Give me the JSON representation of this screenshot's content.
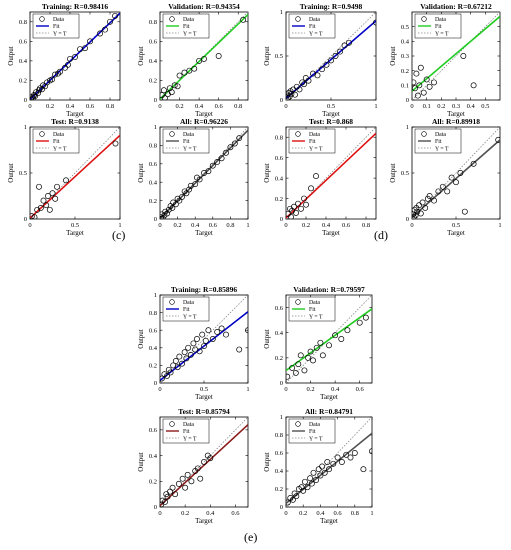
{
  "labels": {
    "c": "(c)",
    "d": "(d)",
    "e": "(e)"
  },
  "legend_text": {
    "data": "Data",
    "fit": "Fit",
    "yt": "Y = T"
  },
  "axis_text": {
    "x": "Target",
    "y": "Output"
  },
  "colors": {
    "training": "#0000c8",
    "validation": "#22cc22",
    "test": "#dd1111",
    "all": "#505050",
    "marker": "#000000",
    "diag": "#888888",
    "test_e": "#8b1a1a"
  },
  "chart_data": [
    {
      "type": "scatter",
      "id": "c-train",
      "title": "Training: R=0.98416",
      "xlabel": "Target",
      "ylabel": "Output",
      "xlim": [
        0,
        0.9
      ],
      "ylim": [
        0,
        0.9
      ],
      "xticks": [
        0,
        0.2,
        0.4,
        0.6,
        0.8
      ],
      "yticks": [
        0,
        0.2,
        0.4,
        0.6,
        0.8
      ],
      "series": [
        {
          "name": "Data",
          "x": [
            0.01,
            0.02,
            0.03,
            0.04,
            0.05,
            0.06,
            0.08,
            0.09,
            0.1,
            0.12,
            0.13,
            0.15,
            0.17,
            0.2,
            0.22,
            0.25,
            0.28,
            0.3,
            0.35,
            0.38,
            0.4,
            0.45,
            0.5,
            0.55,
            0.6,
            0.7,
            0.75,
            0.8,
            0.85
          ],
          "y": [
            0.0,
            0.03,
            0.02,
            0.05,
            0.04,
            0.08,
            0.07,
            0.1,
            0.12,
            0.11,
            0.15,
            0.14,
            0.18,
            0.2,
            0.21,
            0.26,
            0.27,
            0.29,
            0.33,
            0.36,
            0.42,
            0.44,
            0.52,
            0.53,
            0.6,
            0.68,
            0.72,
            0.8,
            0.86
          ]
        }
      ],
      "fit": [
        0.005,
        0.98
      ]
    },
    {
      "type": "scatter",
      "id": "c-val",
      "title": "Validation: R=0.94354",
      "xlabel": "Target",
      "ylabel": "Output",
      "xlim": [
        0,
        0.9
      ],
      "ylim": [
        0,
        0.9
      ],
      "xticks": [
        0,
        0.2,
        0.4,
        0.6,
        0.8
      ],
      "yticks": [
        0,
        0.2,
        0.4,
        0.6,
        0.8
      ],
      "series": [
        {
          "name": "Data",
          "x": [
            0.02,
            0.04,
            0.05,
            0.08,
            0.1,
            0.12,
            0.15,
            0.18,
            0.2,
            0.25,
            0.3,
            0.35,
            0.4,
            0.45,
            0.6,
            0.85
          ],
          "y": [
            0.05,
            0.1,
            0.02,
            0.06,
            0.12,
            0.08,
            0.15,
            0.14,
            0.25,
            0.28,
            0.3,
            0.32,
            0.4,
            0.42,
            0.45,
            0.82
          ]
        }
      ],
      "fit": [
        0.01,
        0.96
      ]
    },
    {
      "type": "scatter",
      "id": "c-test",
      "title": "Test: R=0.9138",
      "xlabel": "Target",
      "ylabel": "Output",
      "xlim": [
        0,
        1
      ],
      "ylim": [
        0,
        1
      ],
      "xticks": [
        0,
        0.5,
        1
      ],
      "yticks": [
        0,
        0.5,
        1
      ],
      "series": [
        {
          "name": "Data",
          "x": [
            0.02,
            0.05,
            0.08,
            0.1,
            0.12,
            0.15,
            0.18,
            0.2,
            0.22,
            0.25,
            0.28,
            0.3,
            0.4,
            0.95
          ],
          "y": [
            0.03,
            0.02,
            0.1,
            0.35,
            0.12,
            0.2,
            0.15,
            0.25,
            0.1,
            0.28,
            0.22,
            0.35,
            0.42,
            0.82
          ]
        }
      ],
      "fit": [
        0.01,
        0.9
      ]
    },
    {
      "type": "scatter",
      "id": "c-all",
      "title": "All: R=0.96226",
      "xlabel": "Target",
      "ylabel": "Output",
      "xlim": [
        0,
        1
      ],
      "ylim": [
        0,
        1
      ],
      "xticks": [
        0,
        0.2,
        0.4,
        0.6,
        0.8,
        1
      ],
      "yticks": [
        0,
        0.2,
        0.4,
        0.6,
        0.8,
        1
      ],
      "series": [
        {
          "name": "Data",
          "x": [
            0.01,
            0.02,
            0.03,
            0.05,
            0.06,
            0.08,
            0.1,
            0.12,
            0.14,
            0.15,
            0.18,
            0.2,
            0.22,
            0.25,
            0.28,
            0.3,
            0.33,
            0.35,
            0.4,
            0.42,
            0.45,
            0.5,
            0.55,
            0.6,
            0.65,
            0.7,
            0.75,
            0.8,
            0.85,
            0.9
          ],
          "y": [
            0.02,
            0.05,
            0.01,
            0.04,
            0.08,
            0.06,
            0.1,
            0.14,
            0.12,
            0.18,
            0.16,
            0.22,
            0.2,
            0.24,
            0.3,
            0.28,
            0.32,
            0.36,
            0.38,
            0.45,
            0.43,
            0.5,
            0.52,
            0.58,
            0.62,
            0.66,
            0.72,
            0.78,
            0.82,
            0.88
          ]
        }
      ],
      "fit": [
        0.005,
        0.96
      ]
    },
    {
      "type": "scatter",
      "id": "d-train",
      "title": "Training: R=0.9498",
      "xlabel": "Target",
      "ylabel": "Output",
      "xlim": [
        0,
        1
      ],
      "ylim": [
        0,
        1
      ],
      "xticks": [
        0,
        0.5,
        1
      ],
      "yticks": [
        0,
        0.5,
        1
      ],
      "series": [
        {
          "name": "Data",
          "x": [
            0.01,
            0.02,
            0.03,
            0.04,
            0.05,
            0.06,
            0.08,
            0.1,
            0.12,
            0.15,
            0.18,
            0.2,
            0.22,
            0.25,
            0.3,
            0.35,
            0.4,
            0.45,
            0.5,
            0.55,
            0.6,
            0.65,
            0.7,
            1.0
          ],
          "y": [
            0.05,
            0.02,
            0.08,
            0.04,
            0.1,
            0.07,
            0.12,
            0.06,
            0.15,
            0.12,
            0.2,
            0.18,
            0.25,
            0.22,
            0.3,
            0.28,
            0.35,
            0.4,
            0.45,
            0.5,
            0.55,
            0.62,
            0.65,
            0.88
          ]
        }
      ],
      "fit": [
        0.02,
        0.88
      ]
    },
    {
      "type": "scatter",
      "id": "d-val",
      "title": "Validation: R=0.67212",
      "xlabel": "Target",
      "ylabel": "Output",
      "xlim": [
        0,
        0.6
      ],
      "ylim": [
        0,
        0.6
      ],
      "xticks": [
        0,
        0.1,
        0.2,
        0.3,
        0.4,
        0.5
      ],
      "yticks": [
        0,
        0.1,
        0.2,
        0.3,
        0.4,
        0.5
      ],
      "series": [
        {
          "name": "Data",
          "x": [
            0.01,
            0.02,
            0.03,
            0.04,
            0.05,
            0.06,
            0.08,
            0.1,
            0.12,
            0.15,
            0.35,
            0.42
          ],
          "y": [
            0.12,
            0.08,
            0.18,
            0.03,
            0.1,
            0.22,
            0.05,
            0.14,
            0.09,
            0.12,
            0.3,
            0.1
          ]
        }
      ],
      "fit": [
        0.06,
        0.85
      ]
    },
    {
      "type": "scatter",
      "id": "d-test",
      "title": "Test: R=0.868",
      "xlabel": "Target",
      "ylabel": "Output",
      "xlim": [
        0,
        0.9
      ],
      "ylim": [
        0,
        0.9
      ],
      "xticks": [
        0,
        0.2,
        0.4,
        0.6,
        0.8
      ],
      "yticks": [
        0,
        0.2,
        0.4,
        0.6,
        0.8
      ],
      "series": [
        {
          "name": "Data",
          "x": [
            0.02,
            0.04,
            0.05,
            0.06,
            0.08,
            0.1,
            0.12,
            0.15,
            0.18,
            0.2,
            0.25,
            0.3
          ],
          "y": [
            0.05,
            0.1,
            0.02,
            0.08,
            0.12,
            0.06,
            0.15,
            0.1,
            0.2,
            0.14,
            0.3,
            0.42
          ]
        }
      ],
      "fit": [
        0.01,
        0.92
      ]
    },
    {
      "type": "scatter",
      "id": "d-all",
      "title": "All: R=0.89918",
      "xlabel": "Target",
      "ylabel": "Output",
      "xlim": [
        0,
        1
      ],
      "ylim": [
        0,
        1
      ],
      "xticks": [
        0,
        0.5,
        1
      ],
      "yticks": [
        0,
        0.5,
        1
      ],
      "series": [
        {
          "name": "Data",
          "x": [
            0.01,
            0.02,
            0.03,
            0.04,
            0.05,
            0.06,
            0.08,
            0.1,
            0.12,
            0.15,
            0.18,
            0.2,
            0.25,
            0.3,
            0.35,
            0.4,
            0.45,
            0.5,
            0.55,
            0.6,
            0.7,
            0.98
          ],
          "y": [
            0.05,
            0.02,
            0.1,
            0.04,
            0.12,
            0.08,
            0.15,
            0.06,
            0.18,
            0.12,
            0.22,
            0.25,
            0.2,
            0.3,
            0.35,
            0.3,
            0.45,
            0.4,
            0.5,
            0.08,
            0.6,
            0.86
          ]
        }
      ],
      "fit": [
        0.02,
        0.84
      ]
    },
    {
      "type": "scatter",
      "id": "e-train",
      "title": "Training: R=0.85896",
      "xlabel": "Target",
      "ylabel": "Output",
      "xlim": [
        0,
        1
      ],
      "ylim": [
        0,
        1
      ],
      "xticks": [
        0,
        0.5,
        1
      ],
      "yticks": [
        0,
        0.2,
        0.4,
        0.6,
        0.8,
        1
      ],
      "series": [
        {
          "name": "Data",
          "x": [
            0.02,
            0.05,
            0.08,
            0.1,
            0.12,
            0.15,
            0.18,
            0.2,
            0.22,
            0.25,
            0.28,
            0.3,
            0.32,
            0.35,
            0.38,
            0.4,
            0.42,
            0.45,
            0.48,
            0.5,
            0.52,
            0.55,
            0.6,
            0.65,
            0.7,
            0.75,
            0.9,
            1.0
          ],
          "y": [
            0.05,
            0.1,
            0.08,
            0.15,
            0.12,
            0.2,
            0.25,
            0.18,
            0.3,
            0.22,
            0.35,
            0.28,
            0.4,
            0.32,
            0.45,
            0.38,
            0.5,
            0.36,
            0.55,
            0.42,
            0.48,
            0.6,
            0.5,
            0.58,
            0.62,
            0.55,
            0.38,
            0.6
          ]
        }
      ],
      "fit": [
        0.03,
        0.78
      ]
    },
    {
      "type": "scatter",
      "id": "e-val",
      "title": "Validation: R=0.79597",
      "xlabel": "Target",
      "ylabel": "Output",
      "xlim": [
        0,
        0.7
      ],
      "ylim": [
        0,
        0.7
      ],
      "xticks": [
        0,
        0.2,
        0.4,
        0.6
      ],
      "yticks": [
        0,
        0.2,
        0.4,
        0.6
      ],
      "series": [
        {
          "name": "Data",
          "x": [
            0.01,
            0.05,
            0.08,
            0.1,
            0.12,
            0.15,
            0.18,
            0.2,
            0.22,
            0.25,
            0.28,
            0.3,
            0.35,
            0.4,
            0.45,
            0.5,
            0.6,
            0.65
          ],
          "y": [
            0.05,
            0.12,
            0.08,
            0.15,
            0.22,
            0.1,
            0.2,
            0.25,
            0.18,
            0.28,
            0.32,
            0.22,
            0.3,
            0.38,
            0.35,
            0.42,
            0.48,
            0.52
          ]
        }
      ],
      "fit": [
        0.1,
        0.7
      ]
    },
    {
      "type": "scatter",
      "id": "e-test",
      "title": "Test: R=0.85794",
      "xlabel": "Target",
      "ylabel": "Output",
      "xlim": [
        0,
        0.7
      ],
      "ylim": [
        0,
        0.7
      ],
      "xticks": [
        0,
        0.2,
        0.4,
        0.6
      ],
      "yticks": [
        0,
        0.2,
        0.4,
        0.6
      ],
      "series": [
        {
          "name": "Data",
          "x": [
            0.01,
            0.02,
            0.04,
            0.05,
            0.06,
            0.08,
            0.1,
            0.12,
            0.15,
            0.18,
            0.2,
            0.22,
            0.25,
            0.28,
            0.3,
            0.32,
            0.35,
            0.38,
            0.4
          ],
          "y": [
            0.02,
            0.05,
            0.04,
            0.1,
            0.08,
            0.12,
            0.15,
            0.1,
            0.18,
            0.22,
            0.15,
            0.25,
            0.2,
            0.28,
            0.3,
            0.22,
            0.35,
            0.4,
            0.38
          ]
        }
      ],
      "fit": [
        0.01,
        0.9
      ]
    },
    {
      "type": "scatter",
      "id": "e-all",
      "title": "All: R=0.84791",
      "xlabel": "Target",
      "ylabel": "Output",
      "xlim": [
        0,
        1
      ],
      "ylim": [
        0,
        1
      ],
      "xticks": [
        0,
        0.2,
        0.4,
        0.6,
        0.8,
        1
      ],
      "yticks": [
        0,
        0.2,
        0.4,
        0.6,
        0.8,
        1
      ],
      "series": [
        {
          "name": "Data",
          "x": [
            0.02,
            0.05,
            0.08,
            0.1,
            0.12,
            0.15,
            0.18,
            0.2,
            0.22,
            0.25,
            0.28,
            0.3,
            0.32,
            0.35,
            0.38,
            0.4,
            0.42,
            0.45,
            0.48,
            0.5,
            0.55,
            0.6,
            0.65,
            0.7,
            0.75,
            0.8,
            0.9,
            1.0
          ],
          "y": [
            0.05,
            0.1,
            0.08,
            0.15,
            0.12,
            0.2,
            0.22,
            0.18,
            0.28,
            0.22,
            0.32,
            0.26,
            0.38,
            0.3,
            0.42,
            0.35,
            0.45,
            0.38,
            0.5,
            0.42,
            0.48,
            0.55,
            0.5,
            0.58,
            0.55,
            0.6,
            0.42,
            0.62
          ]
        }
      ],
      "fit": [
        0.04,
        0.78
      ]
    }
  ]
}
